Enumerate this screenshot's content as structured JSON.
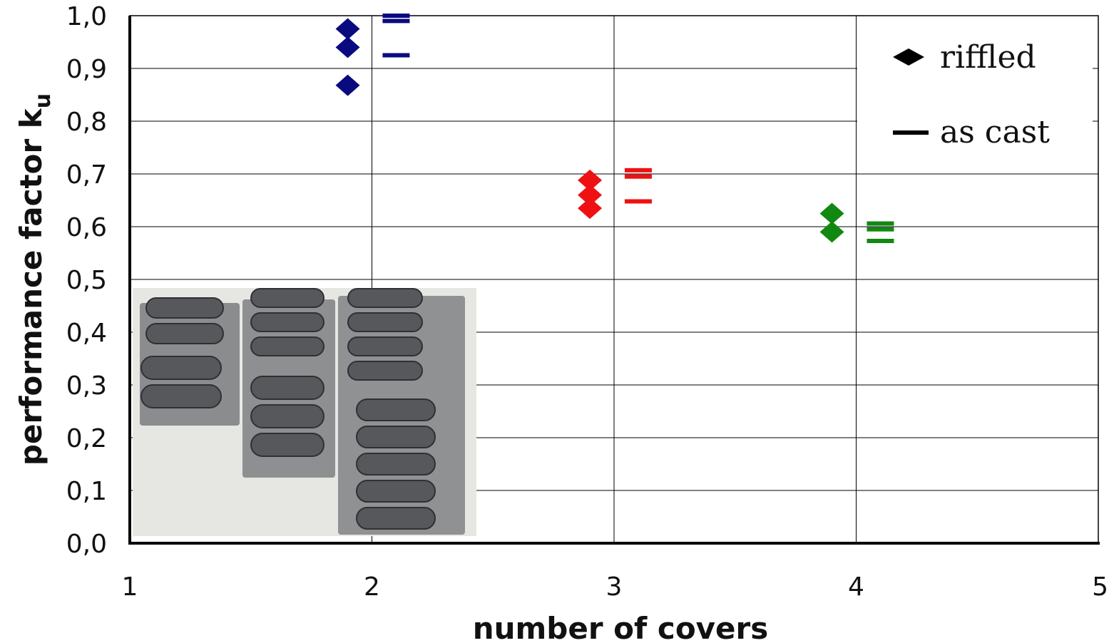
{
  "chart_data": {
    "type": "scatter",
    "title": "",
    "xlabel": "number of covers",
    "ylabel": "performance factor k",
    "ylabel_subscript": "u",
    "xlim": [
      1,
      5
    ],
    "ylim": [
      0.0,
      1.0
    ],
    "x_ticks": [
      "1",
      "2",
      "3",
      "4",
      "5"
    ],
    "y_ticks": [
      "0,0",
      "0,1",
      "0,2",
      "0,3",
      "0,4",
      "0,5",
      "0,6",
      "0,7",
      "0,8",
      "0,9",
      "1,0"
    ],
    "grid": true,
    "legend_position": "top-right",
    "series": [
      {
        "name": "riffled",
        "marker": "diamond",
        "points": [
          {
            "x": 1.9,
            "y": 0.975,
            "color": "#0a0a80"
          },
          {
            "x": 1.9,
            "y": 0.94,
            "color": "#0a0a80"
          },
          {
            "x": 1.9,
            "y": 0.868,
            "color": "#0a0a80"
          },
          {
            "x": 2.9,
            "y": 0.688,
            "color": "#ee1111"
          },
          {
            "x": 2.9,
            "y": 0.66,
            "color": "#ee1111"
          },
          {
            "x": 2.9,
            "y": 0.635,
            "color": "#ee1111"
          },
          {
            "x": 3.9,
            "y": 0.625,
            "color": "#118811"
          },
          {
            "x": 3.9,
            "y": 0.59,
            "color": "#118811"
          }
        ]
      },
      {
        "name": "as cast",
        "marker": "dash",
        "points": [
          {
            "x": 2.1,
            "y": 1.0,
            "color": "#0a0a80"
          },
          {
            "x": 2.1,
            "y": 0.99,
            "color": "#0a0a80"
          },
          {
            "x": 2.1,
            "y": 0.925,
            "color": "#0a0a80"
          },
          {
            "x": 3.1,
            "y": 0.707,
            "color": "#ee1111"
          },
          {
            "x": 3.1,
            "y": 0.695,
            "color": "#ee1111"
          },
          {
            "x": 3.1,
            "y": 0.648,
            "color": "#ee1111"
          },
          {
            "x": 4.1,
            "y": 0.606,
            "color": "#118811"
          },
          {
            "x": 4.1,
            "y": 0.595,
            "color": "#118811"
          },
          {
            "x": 4.1,
            "y": 0.573,
            "color": "#118811"
          }
        ]
      }
    ]
  },
  "inset_photo": {
    "icon": "cast-riffled-covers-photo"
  }
}
